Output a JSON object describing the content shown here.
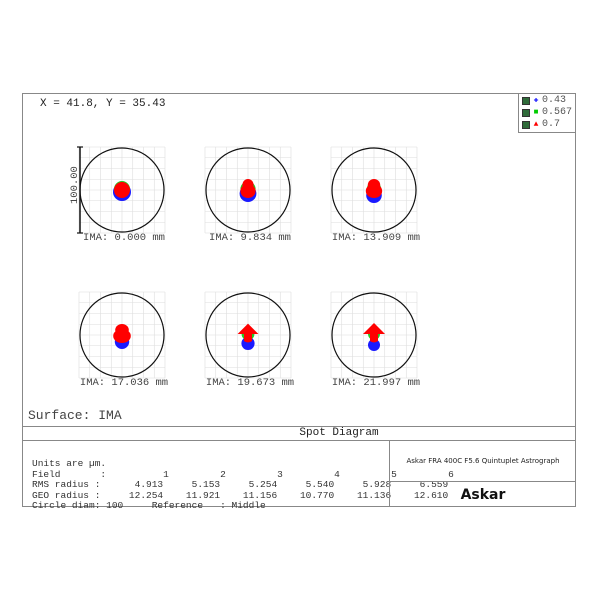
{
  "header": {
    "coordinate_readout": "X = 41.8, Y = 35.43"
  },
  "legend": {
    "items": [
      {
        "label": "0.43",
        "color": "#0000ff",
        "marker": "+"
      },
      {
        "label": "0.567",
        "color": "#00cc00",
        "marker": "■"
      },
      {
        "label": "0.7",
        "color": "#ff0000",
        "marker": "▲"
      }
    ]
  },
  "scale_label": "100.00",
  "surface_label": "Surface: IMA",
  "title": "Spot Diagram",
  "table": {
    "units": "Units are µm.",
    "field_row": "Field       :          1         2         3         4         5         6",
    "rms_row": "RMS radius :      4.913     5.153     5.254     5.540     5.928     6.559",
    "geo_row": "GEO radius :     12.254    11.921    11.156    10.770    11.136    12.610",
    "circle_row": "Circle diam: 100     Reference   : Middle"
  },
  "lens_name": "Askar FRA 400C F5.6 Quintuplet Astrograph",
  "logo": "Askar",
  "chart_data": {
    "type": "scatter",
    "title": "Spot Diagram",
    "surface": "IMA",
    "units": "µm",
    "circle_diameter": 100,
    "reference": "Middle",
    "wavelengths": [
      "0.43",
      "0.567",
      "0.7"
    ],
    "fields": [
      1,
      2,
      3,
      4,
      5,
      6
    ],
    "ima_labels": [
      "IMA: 0.000 mm",
      "IMA: 9.834 mm",
      "IMA: 13.909 mm",
      "IMA: 17.036 mm",
      "IMA: 19.673 mm",
      "IMA: 21.997 mm"
    ],
    "rms_radius": [
      4.913,
      5.153,
      5.254,
      5.54,
      5.928,
      6.559
    ],
    "geo_radius": [
      12.254,
      11.921,
      11.156,
      10.77,
      11.136,
      12.61
    ]
  }
}
